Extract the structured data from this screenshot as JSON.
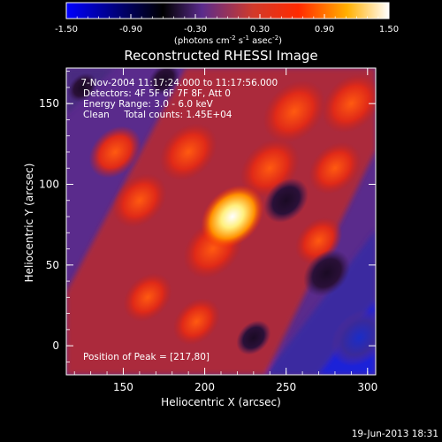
{
  "chart_data": {
    "type": "heatmap",
    "title": "Reconstructed RHESSI Image",
    "colorbar": {
      "min": -1.5,
      "max": 1.5,
      "ticks": [
        "-1.50",
        "-0.90",
        "-0.30",
        "0.30",
        "0.90",
        "1.50"
      ],
      "tick_values": [
        -1.5,
        -0.9,
        -0.3,
        0.3,
        0.9,
        1.5
      ],
      "unit_label_parts": [
        "(photons cm",
        "-2",
        " s",
        "-1",
        " asec",
        "-2",
        ")"
      ],
      "colormap": [
        "#0000ff",
        "#000000",
        "#5a2b8c",
        "#d23a2a",
        "#ff2a00",
        "#ffb000",
        "#ffffff"
      ]
    },
    "xlabel": "Heliocentric X (arcsec)",
    "ylabel": "Heliocentric Y (arcsec)",
    "xlim": [
      115,
      305
    ],
    "ylim": [
      -18,
      172
    ],
    "xticks": [
      150,
      200,
      250,
      300
    ],
    "yticks": [
      0,
      50,
      100,
      150
    ],
    "annotations": [
      " 7-Nov-2004 11:17:24.000 to 11:17:56.000",
      "Detectors: 4F 5F 6F 7F 8F, Att 0",
      "Energy Range: 3.0 - 6.0 keV",
      "Clean     Total counts: 1.45E+04"
    ],
    "peak_label": "Position of Peak = [217,80]",
    "peak": [
      217,
      80
    ],
    "timestamp": "19-Jun-2013 18:31",
    "image_features": [
      {
        "kind": "peak",
        "x": 217,
        "y": 80,
        "value": 1.45
      },
      {
        "kind": "bright",
        "x": 205,
        "y": 60,
        "value": 0.9
      },
      {
        "kind": "bright",
        "x": 190,
        "y": 120,
        "value": 0.85
      },
      {
        "kind": "bright",
        "x": 240,
        "y": 110,
        "value": 0.9
      },
      {
        "kind": "bright",
        "x": 255,
        "y": 145,
        "value": 1.0
      },
      {
        "kind": "bright",
        "x": 290,
        "y": 150,
        "value": 0.9
      },
      {
        "kind": "bright",
        "x": 160,
        "y": 90,
        "value": 0.75
      },
      {
        "kind": "bright",
        "x": 145,
        "y": 120,
        "value": 0.7
      },
      {
        "kind": "bright",
        "x": 165,
        "y": 30,
        "value": 0.6
      },
      {
        "kind": "bright",
        "x": 195,
        "y": 15,
        "value": 0.55
      },
      {
        "kind": "bright",
        "x": 280,
        "y": 110,
        "value": 0.7
      },
      {
        "kind": "bright",
        "x": 270,
        "y": 65,
        "value": 0.55
      },
      {
        "kind": "dark",
        "x": 250,
        "y": 90,
        "value": -0.9
      },
      {
        "kind": "dark",
        "x": 275,
        "y": 45,
        "value": -1.0
      },
      {
        "kind": "dark",
        "x": 295,
        "y": 5,
        "value": -1.4
      },
      {
        "kind": "dark",
        "x": 175,
        "y": 165,
        "value": -0.4
      },
      {
        "kind": "dark",
        "x": 230,
        "y": 5,
        "value": -0.5
      },
      {
        "kind": "dark",
        "x": 125,
        "y": 160,
        "value": -0.3
      }
    ]
  }
}
